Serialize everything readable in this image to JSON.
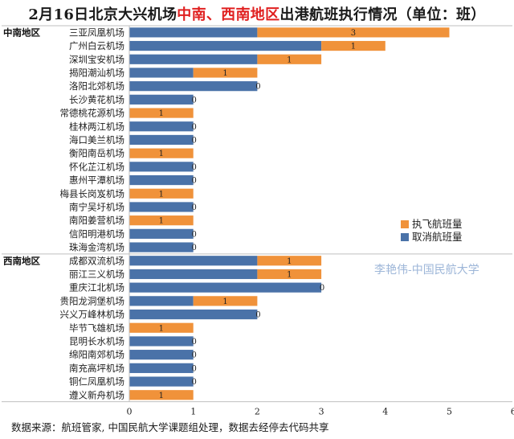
{
  "title": {
    "prefix": "2月16日北京大兴机场",
    "highlight": "中南、西南地区",
    "suffix": "出港航班执行情况（单位：班）"
  },
  "footnote": "数据来源：航班管家, 中国民航大学课题组处理，数据去经停去代码共享",
  "watermark": "李艳伟-中国民航大学",
  "colors": {
    "cancelled": "#4a72a8",
    "executed": "#f0923a",
    "title_highlight": "#e02020"
  },
  "chart_data": {
    "type": "bar",
    "orientation": "horizontal",
    "stacked": true,
    "xlim": [
      0,
      6
    ],
    "xticks": [
      0,
      1,
      2,
      3,
      4,
      5,
      6
    ],
    "grid": false,
    "legend_position": "right",
    "series": [
      {
        "name": "取消航班量",
        "key": "cancelled"
      },
      {
        "name": "执飞航班量",
        "key": "executed"
      }
    ],
    "legend_order": [
      "执飞航班量",
      "取消航班量"
    ],
    "groups": [
      {
        "region": "中南地区",
        "airports": [
          {
            "name": "三亚凤凰机场",
            "cancelled": 2,
            "executed": 3
          },
          {
            "name": "广州白云机场",
            "cancelled": 3,
            "executed": 1
          },
          {
            "name": "深圳宝安机场",
            "cancelled": 2,
            "executed": 1
          },
          {
            "name": "揭阳潮汕机场",
            "cancelled": 1,
            "executed": 1
          },
          {
            "name": "洛阳北郊机场",
            "cancelled": 2,
            "executed": 0
          },
          {
            "name": "长沙黄花机场",
            "cancelled": 1,
            "executed": 0
          },
          {
            "name": "常德桃花源机场",
            "cancelled": 0,
            "executed": 1
          },
          {
            "name": "桂林两江机场",
            "cancelled": 1,
            "executed": 0
          },
          {
            "name": "海口美兰机场",
            "cancelled": 1,
            "executed": 0
          },
          {
            "name": "衡阳南岳机场",
            "cancelled": 0,
            "executed": 1
          },
          {
            "name": "怀化芷江机场",
            "cancelled": 1,
            "executed": 0
          },
          {
            "name": "惠州平潭机场",
            "cancelled": 1,
            "executed": 0
          },
          {
            "name": "梅县长岗岌机场",
            "cancelled": 0,
            "executed": 1
          },
          {
            "name": "南宁吴圩机场",
            "cancelled": 1,
            "executed": 0
          },
          {
            "name": "南阳姜营机场",
            "cancelled": 0,
            "executed": 1
          },
          {
            "name": "信阳明港机场",
            "cancelled": 1,
            "executed": 0
          },
          {
            "name": "珠海金湾机场",
            "cancelled": 1,
            "executed": 0
          }
        ]
      },
      {
        "region": "西南地区",
        "airports": [
          {
            "name": "成都双流机场",
            "cancelled": 2,
            "executed": 1
          },
          {
            "name": "丽江三义机场",
            "cancelled": 2,
            "executed": 1
          },
          {
            "name": "重庆江北机场",
            "cancelled": 3,
            "executed": 0
          },
          {
            "name": "贵阳龙洞堡机场",
            "cancelled": 1,
            "executed": 1
          },
          {
            "name": "兴义万峰林机场",
            "cancelled": 2,
            "executed": 0
          },
          {
            "name": "毕节飞雄机场",
            "cancelled": 0,
            "executed": 1
          },
          {
            "name": "昆明长水机场",
            "cancelled": 1,
            "executed": 0
          },
          {
            "name": "绵阳南郊机场",
            "cancelled": 1,
            "executed": 0
          },
          {
            "name": "南充高坪机场",
            "cancelled": 1,
            "executed": 0
          },
          {
            "name": "铜仁凤凰机场",
            "cancelled": 1,
            "executed": 0
          },
          {
            "name": "遵义新舟机场",
            "cancelled": 0,
            "executed": 1
          }
        ]
      }
    ]
  }
}
